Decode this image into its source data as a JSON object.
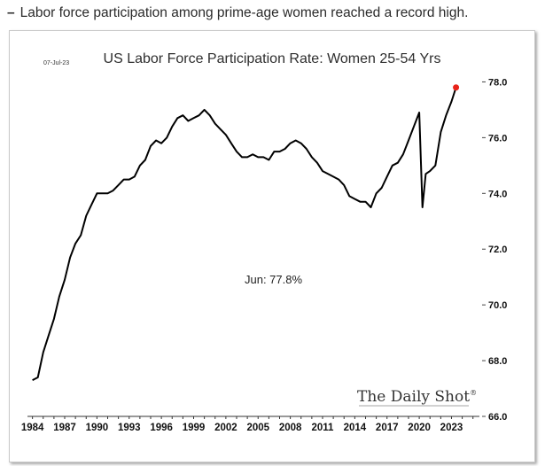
{
  "caption": {
    "dash": "–",
    "text": "Labor force participation among prime-age women reached a record high."
  },
  "chart_date": "07-Jul-23",
  "brand": "The Daily Shot",
  "brand_mark": "®",
  "annotation": "Jun:   77.8%",
  "chart_data": {
    "type": "line",
    "title": "US Labor Force Participation Rate: Women 25-54 Yrs",
    "xlabel": "",
    "ylabel": "",
    "xlim": [
      1983.7,
      2025.6
    ],
    "ylim": [
      66.0,
      78.3
    ],
    "ytick_values": [
      66.0,
      68.0,
      70.0,
      72.0,
      74.0,
      76.0,
      78.0
    ],
    "ytick_labels": [
      "66.0",
      "68.0",
      "70.0",
      "72.0",
      "74.0",
      "76.0",
      "78.0"
    ],
    "xtick_labels": [
      "1984",
      "1987",
      "1990",
      "1993",
      "1996",
      "1999",
      "2002",
      "2005",
      "2008",
      "2011",
      "2014",
      "2017",
      "2020",
      "2023"
    ],
    "series": [
      {
        "name": "Women 25-54 participation rate (%)",
        "points": [
          [
            1984.0,
            67.3
          ],
          [
            1984.5,
            67.4
          ],
          [
            1985.0,
            68.3
          ],
          [
            1985.5,
            68.9
          ],
          [
            1986.0,
            69.5
          ],
          [
            1986.5,
            70.3
          ],
          [
            1987.0,
            70.9
          ],
          [
            1987.5,
            71.7
          ],
          [
            1988.0,
            72.2
          ],
          [
            1988.5,
            72.5
          ],
          [
            1989.0,
            73.2
          ],
          [
            1989.5,
            73.6
          ],
          [
            1990.0,
            74.0
          ],
          [
            1990.5,
            74.0
          ],
          [
            1991.0,
            74.0
          ],
          [
            1991.5,
            74.1
          ],
          [
            1992.0,
            74.3
          ],
          [
            1992.5,
            74.5
          ],
          [
            1993.0,
            74.5
          ],
          [
            1993.5,
            74.6
          ],
          [
            1994.0,
            75.0
          ],
          [
            1994.5,
            75.2
          ],
          [
            1995.0,
            75.7
          ],
          [
            1995.5,
            75.9
          ],
          [
            1996.0,
            75.8
          ],
          [
            1996.5,
            76.0
          ],
          [
            1997.0,
            76.4
          ],
          [
            1997.5,
            76.7
          ],
          [
            1998.0,
            76.8
          ],
          [
            1998.5,
            76.6
          ],
          [
            1999.0,
            76.7
          ],
          [
            1999.5,
            76.8
          ],
          [
            2000.0,
            77.0
          ],
          [
            2000.5,
            76.8
          ],
          [
            2001.0,
            76.5
          ],
          [
            2001.5,
            76.3
          ],
          [
            2002.0,
            76.1
          ],
          [
            2002.5,
            75.8
          ],
          [
            2003.0,
            75.5
          ],
          [
            2003.5,
            75.3
          ],
          [
            2004.0,
            75.3
          ],
          [
            2004.5,
            75.4
          ],
          [
            2005.0,
            75.3
          ],
          [
            2005.5,
            75.3
          ],
          [
            2006.0,
            75.2
          ],
          [
            2006.5,
            75.5
          ],
          [
            2007.0,
            75.5
          ],
          [
            2007.5,
            75.6
          ],
          [
            2008.0,
            75.8
          ],
          [
            2008.5,
            75.9
          ],
          [
            2009.0,
            75.8
          ],
          [
            2009.5,
            75.6
          ],
          [
            2010.0,
            75.3
          ],
          [
            2010.5,
            75.1
          ],
          [
            2011.0,
            74.8
          ],
          [
            2011.5,
            74.7
          ],
          [
            2012.0,
            74.6
          ],
          [
            2012.5,
            74.5
          ],
          [
            2013.0,
            74.3
          ],
          [
            2013.5,
            73.9
          ],
          [
            2014.0,
            73.8
          ],
          [
            2014.5,
            73.7
          ],
          [
            2015.0,
            73.7
          ],
          [
            2015.5,
            73.5
          ],
          [
            2016.0,
            74.0
          ],
          [
            2016.5,
            74.2
          ],
          [
            2017.0,
            74.6
          ],
          [
            2017.5,
            75.0
          ],
          [
            2018.0,
            75.1
          ],
          [
            2018.5,
            75.4
          ],
          [
            2019.0,
            75.9
          ],
          [
            2019.5,
            76.4
          ],
          [
            2020.0,
            76.9
          ],
          [
            2020.3,
            73.5
          ],
          [
            2020.6,
            74.7
          ],
          [
            2021.0,
            74.8
          ],
          [
            2021.5,
            75.0
          ],
          [
            2022.0,
            76.2
          ],
          [
            2022.5,
            76.8
          ],
          [
            2023.0,
            77.3
          ],
          [
            2023.42,
            77.8
          ]
        ]
      }
    ],
    "last_point": {
      "x": 2023.42,
      "y": 77.8,
      "label": "Jun: 77.8%"
    },
    "colors": {
      "line": "#000000",
      "marker": "#e8231a",
      "gridline": "#d9d9d9"
    }
  }
}
